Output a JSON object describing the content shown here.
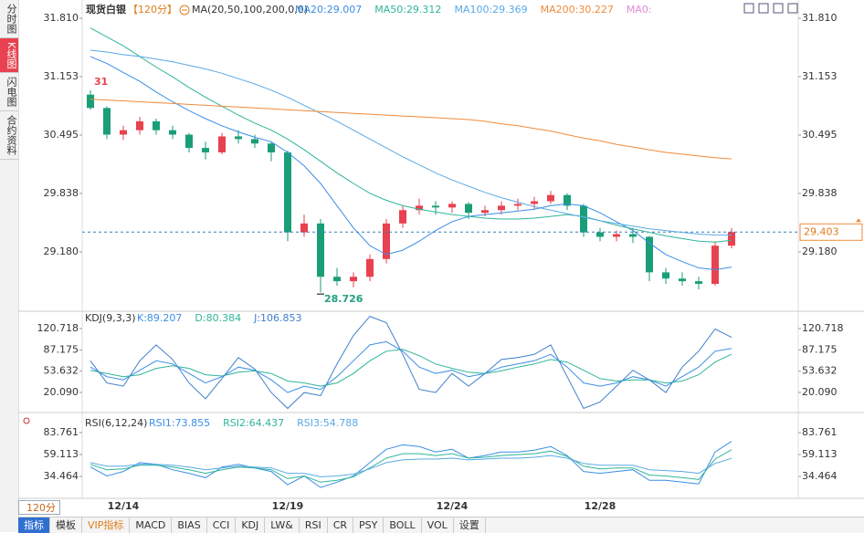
{
  "ui": {
    "sidebar_tabs": [
      "分时图",
      "K线图",
      "闪电图",
      "合约资料"
    ],
    "sidebar_selected": 1,
    "period_selector": "120分",
    "bottom_tabs": [
      "指标",
      "模板",
      "VIP指标",
      "MACD",
      "BIAS",
      "CCI",
      "KDJ",
      "LW&",
      "RSI",
      "CR",
      "PSY",
      "BOLL",
      "VOL",
      "设置"
    ],
    "bottom_selected": 0
  },
  "chart_data": [
    {
      "type": "candlestick",
      "title": "现货白银",
      "period": "【120分】",
      "ma_label": "MA(20,50,100,200,0,0)",
      "categories": [
        null,
        null,
        "12/14",
        null,
        null,
        null,
        null,
        null,
        null,
        null,
        null,
        null,
        "12/19",
        null,
        null,
        null,
        null,
        null,
        null,
        null,
        null,
        null,
        "12/24",
        null,
        null,
        null,
        null,
        null,
        null,
        null,
        null,
        "12/28",
        null,
        null,
        null,
        null,
        null,
        null,
        null,
        null
      ],
      "ohlc": [
        [
          30.95,
          31.0,
          30.78,
          30.8
        ],
        [
          30.8,
          30.82,
          30.45,
          30.5
        ],
        [
          30.5,
          30.6,
          30.44,
          30.55
        ],
        [
          30.55,
          30.7,
          30.5,
          30.65
        ],
        [
          30.65,
          30.68,
          30.5,
          30.55
        ],
        [
          30.55,
          30.6,
          30.45,
          30.5
        ],
        [
          30.5,
          30.52,
          30.3,
          30.35
        ],
        [
          30.35,
          30.42,
          30.22,
          30.3
        ],
        [
          30.3,
          30.52,
          30.28,
          30.48
        ],
        [
          30.48,
          30.55,
          30.4,
          30.45
        ],
        [
          30.45,
          30.5,
          30.35,
          30.4
        ],
        [
          30.4,
          30.42,
          30.2,
          30.3
        ],
        [
          30.3,
          30.32,
          29.3,
          29.4
        ],
        [
          29.4,
          29.6,
          29.35,
          29.5
        ],
        [
          29.5,
          29.55,
          28.726,
          28.9
        ],
        [
          28.9,
          29.0,
          28.8,
          28.85
        ],
        [
          28.85,
          28.95,
          28.78,
          28.9
        ],
        [
          28.9,
          29.15,
          28.85,
          29.1
        ],
        [
          29.1,
          29.55,
          29.05,
          29.5
        ],
        [
          29.5,
          29.7,
          29.45,
          29.65
        ],
        [
          29.65,
          29.78,
          29.6,
          29.7
        ],
        [
          29.7,
          29.75,
          29.6,
          29.68
        ],
        [
          29.68,
          29.75,
          29.62,
          29.72
        ],
        [
          29.72,
          29.74,
          29.55,
          29.62
        ],
        [
          29.62,
          29.7,
          29.58,
          29.65
        ],
        [
          29.65,
          29.75,
          29.6,
          29.7
        ],
        [
          29.7,
          29.78,
          29.65,
          29.72
        ],
        [
          29.72,
          29.8,
          29.66,
          29.75
        ],
        [
          29.75,
          29.866,
          29.72,
          29.82
        ],
        [
          29.82,
          29.84,
          29.65,
          29.7
        ],
        [
          29.7,
          29.72,
          29.35,
          29.4
        ],
        [
          29.4,
          29.45,
          29.3,
          29.35
        ],
        [
          29.35,
          29.42,
          29.3,
          29.38
        ],
        [
          29.38,
          29.45,
          29.28,
          29.35
        ],
        [
          29.35,
          29.36,
          28.85,
          28.95
        ],
        [
          28.95,
          29.0,
          28.82,
          28.88
        ],
        [
          28.88,
          28.95,
          28.8,
          28.85
        ],
        [
          28.85,
          28.9,
          28.759,
          28.82
        ],
        [
          28.82,
          29.3,
          28.8,
          29.25
        ],
        [
          29.25,
          29.45,
          29.22,
          29.403
        ]
      ],
      "up_color": "#e8414f",
      "down_color": "#1a9e78",
      "series": [
        {
          "name": "MA20:29.007",
          "color": "#3a8ee6",
          "values": [
            31.38,
            31.3,
            31.2,
            31.1,
            30.98,
            30.87,
            30.77,
            30.68,
            30.6,
            30.53,
            30.47,
            30.42,
            30.3,
            30.15,
            29.95,
            29.7,
            29.45,
            29.25,
            29.15,
            29.2,
            29.3,
            29.42,
            29.52,
            29.58,
            29.6,
            29.62,
            29.64,
            29.66,
            29.7,
            29.72,
            29.7,
            29.62,
            29.52,
            29.42,
            29.28,
            29.15,
            29.07,
            29.0,
            28.98,
            29.007
          ]
        },
        {
          "name": "MA50:29.312",
          "color": "#2fb59a",
          "values": [
            31.7,
            31.6,
            31.5,
            31.38,
            31.26,
            31.15,
            31.03,
            30.92,
            30.82,
            30.72,
            30.63,
            30.55,
            30.45,
            30.33,
            30.2,
            30.07,
            29.95,
            29.84,
            29.76,
            29.7,
            29.66,
            29.63,
            29.6,
            29.58,
            29.56,
            29.55,
            29.55,
            29.56,
            29.58,
            29.6,
            29.58,
            29.53,
            29.48,
            29.44,
            29.4,
            29.36,
            29.33,
            29.3,
            29.29,
            29.312
          ]
        },
        {
          "name": "MA100:29.369",
          "color": "#5aa9e6",
          "values": [
            31.45,
            31.43,
            31.4,
            31.38,
            31.35,
            31.32,
            31.28,
            31.24,
            31.19,
            31.13,
            31.07,
            31.0,
            30.92,
            30.83,
            30.74,
            30.65,
            30.55,
            30.45,
            30.35,
            30.25,
            30.16,
            30.07,
            29.99,
            29.92,
            29.85,
            29.79,
            29.74,
            29.69,
            29.65,
            29.61,
            29.57,
            29.53,
            29.5,
            29.47,
            29.44,
            29.42,
            29.4,
            29.38,
            29.37,
            29.369
          ]
        },
        {
          "name": "MA200:30.227",
          "color": "#f08a3a",
          "values": [
            30.9,
            30.89,
            30.88,
            30.87,
            30.86,
            30.85,
            30.84,
            30.83,
            30.82,
            30.81,
            30.8,
            30.79,
            30.78,
            30.77,
            30.76,
            30.75,
            30.74,
            30.73,
            30.72,
            30.71,
            30.7,
            30.69,
            30.68,
            30.67,
            30.65,
            30.62,
            30.6,
            30.57,
            30.54,
            30.5,
            30.46,
            30.43,
            30.39,
            30.36,
            30.33,
            30.3,
            30.28,
            30.26,
            30.24,
            30.227
          ]
        }
      ],
      "extra_legend": [
        {
          "name": "MA0:",
          "color": "#e08ad8"
        }
      ],
      "current_price": 29.403,
      "ylim": [
        28.5225,
        31.81
      ],
      "yticks": [
        {
          "value": 31.81,
          "label": "31.810"
        },
        31.153,
        30.495,
        29.838,
        {
          "value": 29.18,
          "label": "29.180"
        }
      ]
    },
    {
      "type": "line",
      "title": "KDJ(9,3,3)",
      "series": [
        {
          "name": "K:89.207",
          "color": "#3a8ee6",
          "values": [
            60,
            45,
            40,
            55,
            70,
            65,
            50,
            35,
            45,
            60,
            55,
            40,
            20,
            30,
            25,
            45,
            70,
            95,
            100,
            85,
            60,
            50,
            55,
            45,
            50,
            60,
            65,
            70,
            80,
            60,
            35,
            30,
            35,
            45,
            40,
            30,
            45,
            60,
            85,
            89.207
          ]
        },
        {
          "name": "D:80.384",
          "color": "#2fb59a",
          "values": [
            55,
            50,
            45,
            48,
            58,
            62,
            58,
            48,
            46,
            52,
            54,
            50,
            38,
            35,
            30,
            35,
            50,
            70,
            85,
            88,
            78,
            65,
            58,
            52,
            50,
            54,
            60,
            65,
            72,
            68,
            55,
            42,
            38,
            40,
            40,
            35,
            38,
            48,
            68,
            80.384
          ]
        },
        {
          "name": "J:106.853",
          "color": "#3f7fc9",
          "values": [
            70,
            35,
            30,
            70,
            95,
            72,
            35,
            10,
            42,
            75,
            57,
            20,
            -5,
            20,
            15,
            65,
            110,
            140,
            130,
            80,
            25,
            20,
            50,
            30,
            50,
            72,
            75,
            80,
            95,
            45,
            -5,
            5,
            30,
            55,
            40,
            20,
            60,
            85,
            120,
            106.853
          ]
        }
      ],
      "ylim": [
        -8.66,
        142.28
      ],
      "yticks": [
        120.718,
        87.175,
        53.632,
        {
          "value": 20.09,
          "label": "20.090"
        }
      ]
    },
    {
      "type": "line",
      "title": "RSI(6,12,24)",
      "series": [
        {
          "name": "RSI1:73.855",
          "color": "#3a8ee6",
          "values": [
            45,
            35,
            40,
            50,
            48,
            42,
            38,
            33,
            45,
            48,
            44,
            40,
            25,
            35,
            22,
            28,
            35,
            50,
            65,
            70,
            68,
            62,
            65,
            55,
            58,
            62,
            62,
            64,
            68,
            58,
            40,
            38,
            40,
            42,
            30,
            30,
            28,
            26,
            62,
            73.855
          ]
        },
        {
          "name": "RSI2:64.437",
          "color": "#2fb59a",
          "values": [
            48,
            42,
            43,
            47,
            47,
            45,
            42,
            38,
            42,
            45,
            44,
            42,
            32,
            35,
            28,
            30,
            34,
            44,
            55,
            60,
            60,
            58,
            60,
            55,
            56,
            58,
            59,
            60,
            63,
            57,
            46,
            43,
            44,
            44,
            36,
            35,
            33,
            31,
            54,
            64.437
          ]
        },
        {
          "name": "RSI3:54.788",
          "color": "#5aa9e6",
          "values": [
            50,
            46,
            46,
            48,
            48,
            47,
            45,
            42,
            44,
            46,
            45,
            44,
            38,
            38,
            34,
            35,
            37,
            43,
            50,
            53,
            54,
            54,
            55,
            53,
            54,
            55,
            55,
            56,
            58,
            55,
            49,
            47,
            47,
            47,
            42,
            41,
            40,
            38,
            49,
            54.788
          ]
        }
      ],
      "ylim": [
        10.84,
        89.92
      ],
      "yticks": [
        83.761,
        59.113,
        34.464
      ]
    }
  ]
}
